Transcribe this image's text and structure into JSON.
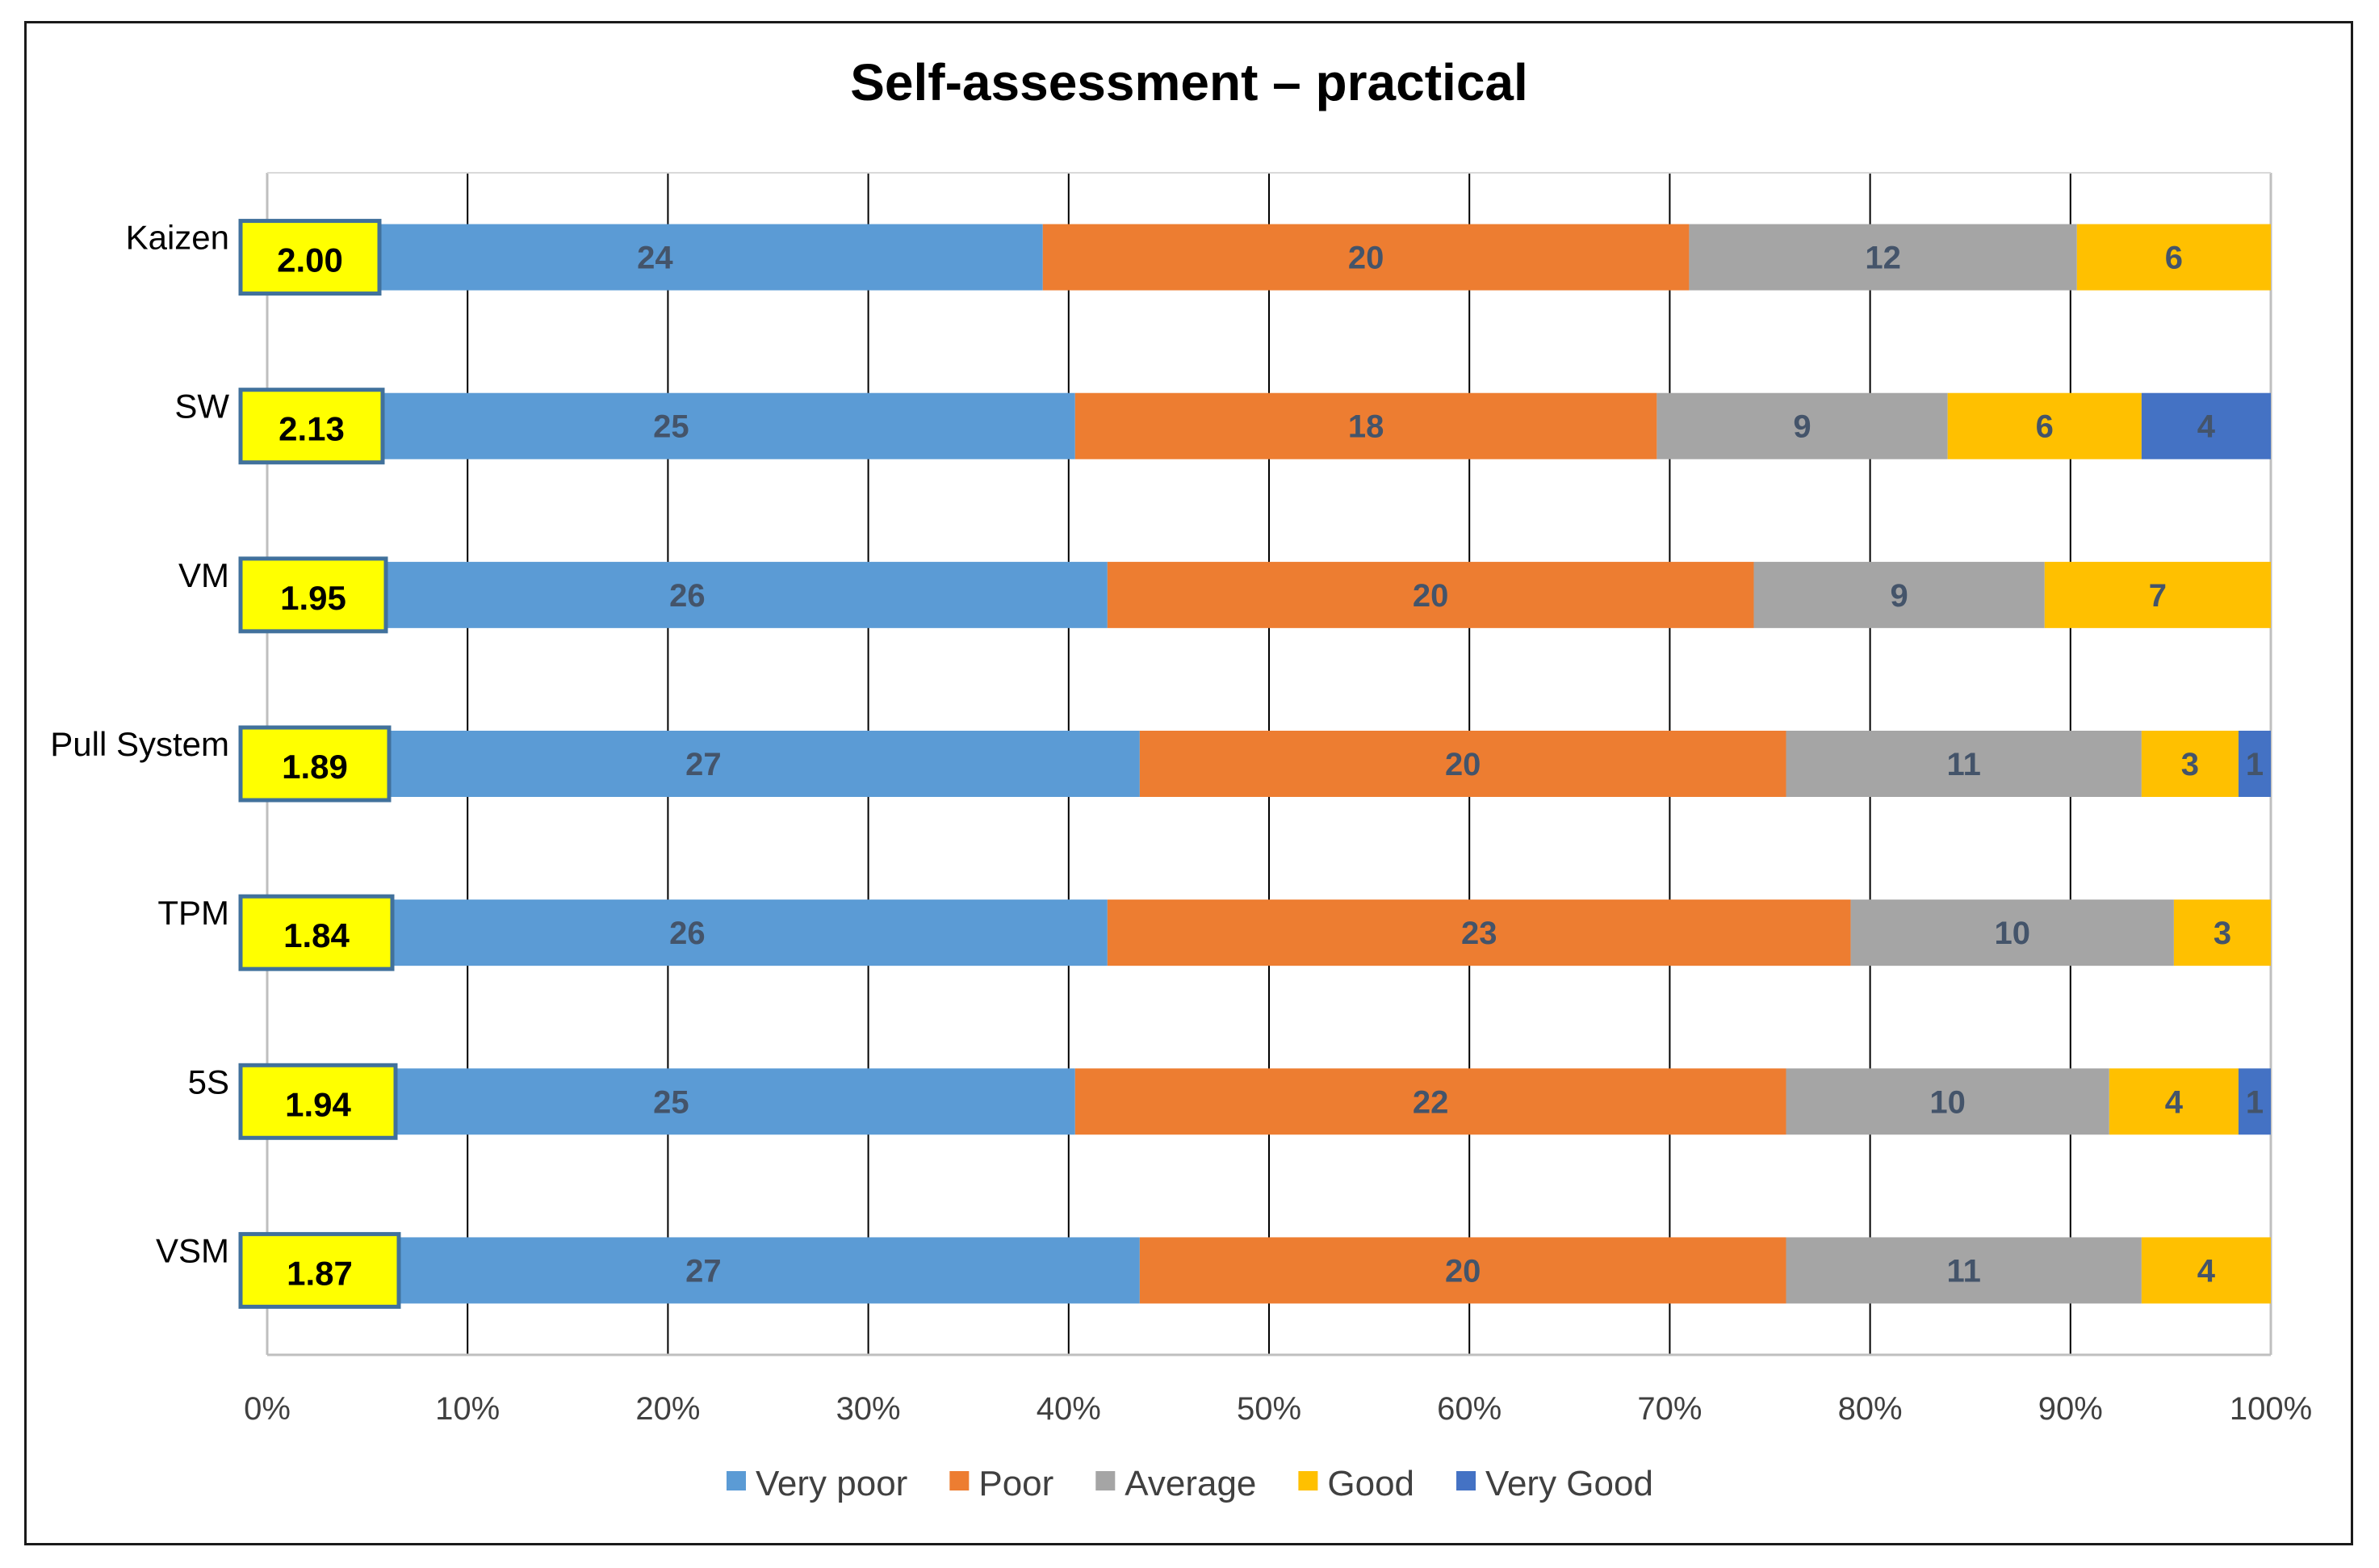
{
  "chart_data": {
    "type": "bar",
    "orientation": "horizontal",
    "stacked": "percent",
    "title": "Self-assessment – practical",
    "categories": [
      "Kaizen",
      "SW",
      "VM",
      "Pull System",
      "TPM",
      "5S",
      "VSM"
    ],
    "mean_scores": [
      "2.00",
      "2.13",
      "1.95",
      "1.89",
      "1.84",
      "1.94",
      "1.87"
    ],
    "series": [
      {
        "name": "Very poor",
        "color": "#5b9bd5",
        "values": [
          24,
          25,
          26,
          27,
          26,
          25,
          27
        ]
      },
      {
        "name": "Poor",
        "color": "#ed7d31",
        "values": [
          20,
          18,
          20,
          20,
          23,
          22,
          20
        ]
      },
      {
        "name": "Average",
        "color": "#a5a5a5",
        "values": [
          12,
          9,
          9,
          11,
          10,
          10,
          11
        ]
      },
      {
        "name": "Good",
        "color": "#ffc000",
        "values": [
          6,
          6,
          7,
          3,
          3,
          4,
          4
        ]
      },
      {
        "name": "Very Good",
        "color": "#4472c4",
        "values": [
          0,
          4,
          0,
          1,
          0,
          1,
          0
        ]
      }
    ],
    "x_ticks": [
      "0%",
      "10%",
      "20%",
      "30%",
      "40%",
      "50%",
      "60%",
      "70%",
      "80%",
      "90%",
      "100%"
    ],
    "xlim": [
      0,
      100
    ],
    "grid": true,
    "legend_position": "bottom"
  }
}
